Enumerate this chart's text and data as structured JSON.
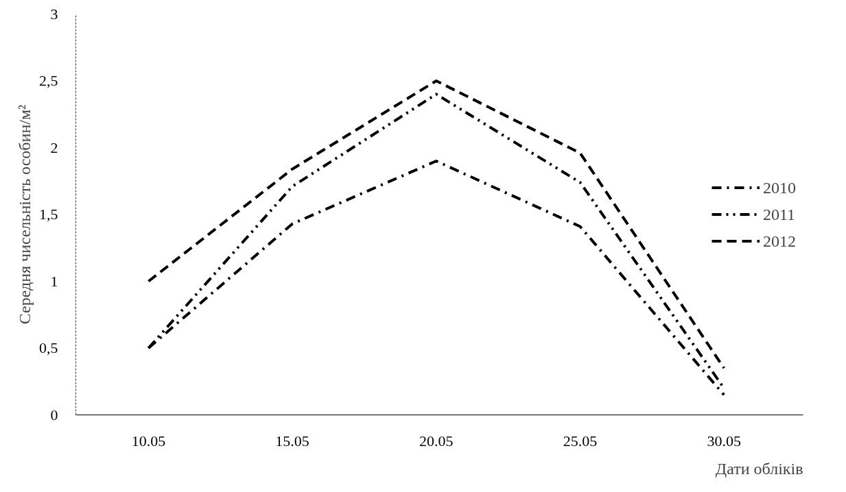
{
  "chart_data": {
    "type": "line",
    "xlabel": "Дати обліків",
    "ylabel": "Середня чисельність особин/м²",
    "categories": [
      "10.05",
      "15.05",
      "20.05",
      "25.05",
      "30.05"
    ],
    "series": [
      {
        "name": "2010",
        "color": "#000000",
        "line_style": "dashdot",
        "values": [
          0.5,
          1.43,
          1.9,
          1.41,
          0.15
        ]
      },
      {
        "name": "2011",
        "color": "#000000",
        "line_style": "dashdotdot",
        "values": [
          0.5,
          1.71,
          2.4,
          1.74,
          0.2
        ]
      },
      {
        "name": "2012",
        "color": "#000000",
        "line_style": "dashed",
        "values": [
          1.0,
          1.84,
          2.5,
          1.96,
          0.35
        ]
      }
    ],
    "ylim": [
      0,
      3
    ],
    "yticks": [
      0,
      {
        "value": 0.5,
        "label": "0,5"
      },
      1,
      {
        "value": 1.5,
        "label": "1,5"
      },
      2,
      {
        "value": 2.5,
        "label": "2,5"
      },
      3
    ],
    "grid": false,
    "legend": "right",
    "marker": "none"
  }
}
